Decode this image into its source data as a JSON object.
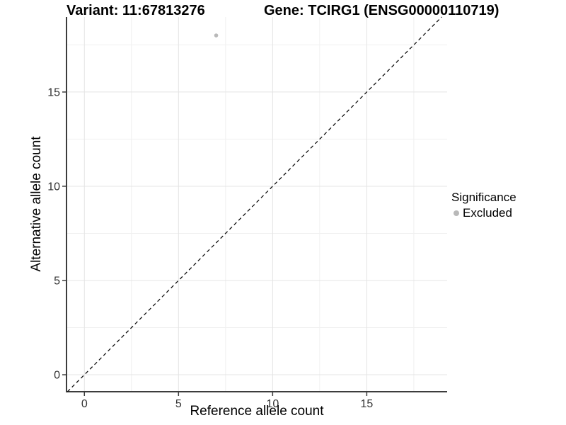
{
  "header": {
    "variant_title": "Variant: 11:67813276",
    "gene_title": "Gene: TCIRG1 (ENSG00000110719)"
  },
  "legend": {
    "title": "Significance",
    "position": "right",
    "items": [
      {
        "label": "Excluded",
        "color": "#b9b9b9",
        "marker": "circle-icon"
      }
    ]
  },
  "chart_data": {
    "type": "scatter",
    "xlabel": "Reference allele count",
    "ylabel": "Alternative allele count",
    "xlim": [
      -0.95,
      19.27
    ],
    "ylim": [
      -0.9,
      18.98
    ],
    "x_ticks": [
      0,
      5,
      10,
      15
    ],
    "y_ticks": [
      0,
      5,
      10,
      15
    ],
    "x_minor_ticks": [
      2.5,
      7.5,
      12.5,
      17.5
    ],
    "y_minor_ticks": [
      2.5,
      7.5,
      12.5,
      17.5
    ],
    "grid": true,
    "legend_position": "right",
    "reference_line": {
      "kind": "identity",
      "equation": "y = x",
      "linestyle": "dashed",
      "color": "#111111"
    },
    "series": [
      {
        "name": "Excluded",
        "color": "#b9b9b9",
        "points": [
          {
            "x": 7,
            "y": 18
          }
        ]
      }
    ],
    "style": {
      "background": "#ffffff",
      "grid_major_color": "#e4e4e4",
      "grid_minor_color": "#f0f0f0",
      "axis_line_color": "#3c3c3c",
      "tick_label_color": "#333333",
      "point_color": "#b9b9b9"
    }
  }
}
